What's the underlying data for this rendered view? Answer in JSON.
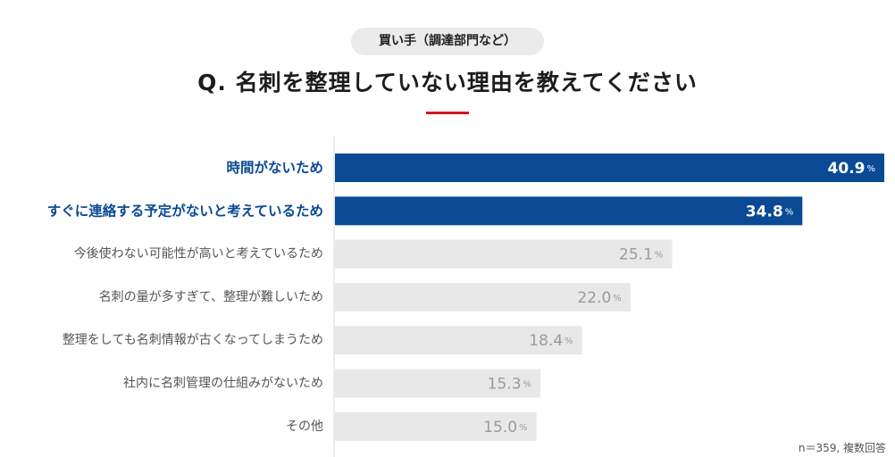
{
  "header": {
    "respondent_label": "買い手（調達部門など）",
    "question": "Q. 名刺を整理していない理由を教えてください"
  },
  "chart_data": {
    "type": "bar",
    "orientation": "horizontal",
    "categories": [
      "時間がないため",
      "すぐに連絡する予定がないと考えているため",
      "今後使わない可能性が高いと考えているため",
      "名刺の量が多すぎて、整理が難しいため",
      "整理をしても名刺情報が古くなってしまうため",
      "社内に名刺管理の仕組みがないため",
      "その他"
    ],
    "values": [
      40.9,
      34.8,
      25.1,
      22.0,
      18.4,
      15.3,
      15.0
    ],
    "value_labels": [
      "40.9",
      "34.8",
      "25.1",
      "22.0",
      "18.4",
      "15.3",
      "15.0"
    ],
    "unit": "%",
    "highlighted": [
      true,
      true,
      false,
      false,
      false,
      false,
      false
    ],
    "xlim": [
      0,
      40.9
    ],
    "grid": false,
    "colors": {
      "highlight_bar": "#0a4a95",
      "normal_bar": "#e8e8e8",
      "highlight_label": "#0a4a95",
      "normal_label": "#555555",
      "highlight_value": "#ffffff",
      "normal_value": "#9a9a9a",
      "accent_rule": "#d6141e"
    }
  },
  "footnote": "n＝359, 複数回答"
}
